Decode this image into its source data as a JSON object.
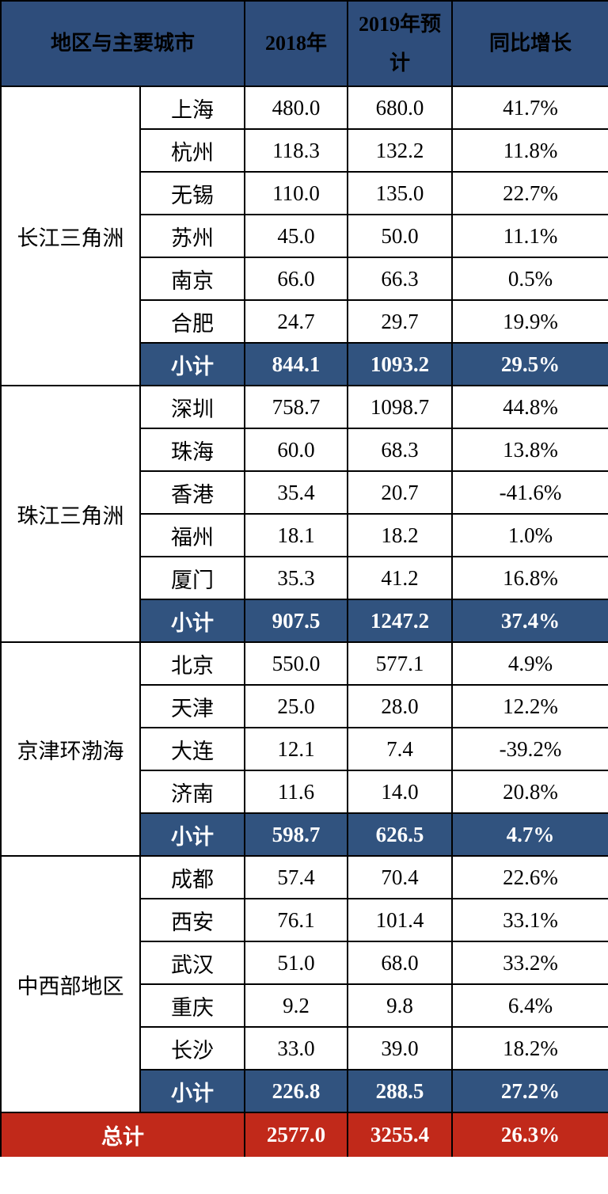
{
  "colors": {
    "header_bg": "#2E4D7B",
    "subtotal_bg": "#31537F",
    "total_bg": "#C1291A",
    "border": "#000000",
    "header_text": "#ffffff",
    "body_text": "#000000"
  },
  "chart_data": {
    "type": "table",
    "header": {
      "region_city": "地区与主要城市",
      "y2018": "2018年",
      "y2019": "2019年预计",
      "growth": "同比增长"
    },
    "subtotal_label": "小计",
    "regions": [
      {
        "name": "长江三角洲",
        "cities": [
          {
            "name": "上海",
            "y2018": "480.0",
            "y2019": "680.0",
            "growth": "41.7%"
          },
          {
            "name": "杭州",
            "y2018": "118.3",
            "y2019": "132.2",
            "growth": "11.8%"
          },
          {
            "name": "无锡",
            "y2018": "110.0",
            "y2019": "135.0",
            "growth": "22.7%"
          },
          {
            "name": "苏州",
            "y2018": "45.0",
            "y2019": "50.0",
            "growth": "11.1%"
          },
          {
            "name": "南京",
            "y2018": "66.0",
            "y2019": "66.3",
            "growth": "0.5%"
          },
          {
            "name": "合肥",
            "y2018": "24.7",
            "y2019": "29.7",
            "growth": "19.9%"
          }
        ],
        "subtotal": {
          "y2018": "844.1",
          "y2019": "1093.2",
          "growth": "29.5%"
        }
      },
      {
        "name": "珠江三角洲",
        "cities": [
          {
            "name": "深圳",
            "y2018": "758.7",
            "y2019": "1098.7",
            "growth": "44.8%"
          },
          {
            "name": "珠海",
            "y2018": "60.0",
            "y2019": "68.3",
            "growth": "13.8%"
          },
          {
            "name": "香港",
            "y2018": "35.4",
            "y2019": "20.7",
            "growth": "-41.6%"
          },
          {
            "name": "福州",
            "y2018": "18.1",
            "y2019": "18.2",
            "growth": "1.0%"
          },
          {
            "name": "厦门",
            "y2018": "35.3",
            "y2019": "41.2",
            "growth": "16.8%"
          }
        ],
        "subtotal": {
          "y2018": "907.5",
          "y2019": "1247.2",
          "growth": "37.4%"
        }
      },
      {
        "name": "京津环渤海",
        "cities": [
          {
            "name": "北京",
            "y2018": "550.0",
            "y2019": "577.1",
            "growth": "4.9%"
          },
          {
            "name": "天津",
            "y2018": "25.0",
            "y2019": "28.0",
            "growth": "12.2%"
          },
          {
            "name": "大连",
            "y2018": "12.1",
            "y2019": "7.4",
            "growth": "-39.2%"
          },
          {
            "name": "济南",
            "y2018": "11.6",
            "y2019": "14.0",
            "growth": "20.8%"
          }
        ],
        "subtotal": {
          "y2018": "598.7",
          "y2019": "626.5",
          "growth": "4.7%"
        }
      },
      {
        "name": "中西部地区",
        "cities": [
          {
            "name": "成都",
            "y2018": "57.4",
            "y2019": "70.4",
            "growth": "22.6%"
          },
          {
            "name": "西安",
            "y2018": "76.1",
            "y2019": "101.4",
            "growth": "33.1%"
          },
          {
            "name": "武汉",
            "y2018": "51.0",
            "y2019": "68.0",
            "growth": "33.2%"
          },
          {
            "name": "重庆",
            "y2018": "9.2",
            "y2019": "9.8",
            "growth": "6.4%"
          },
          {
            "name": "长沙",
            "y2018": "33.0",
            "y2019": "39.0",
            "growth": "18.2%"
          }
        ],
        "subtotal": {
          "y2018": "226.8",
          "y2019": "288.5",
          "growth": "27.2%"
        }
      }
    ],
    "total": {
      "label": "总计",
      "y2018": "2577.0",
      "y2019": "3255.4",
      "growth": "26.3%"
    }
  }
}
